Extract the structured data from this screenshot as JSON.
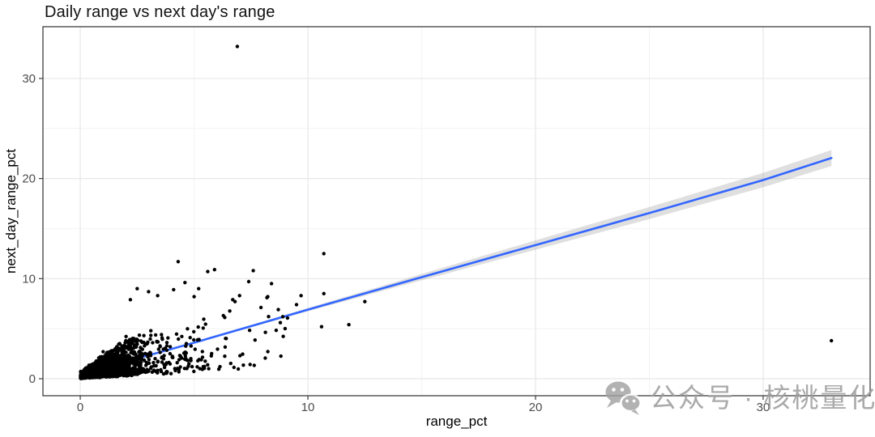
{
  "title": "Daily range vs next day's range",
  "watermark": {
    "icon": "wechat-icon",
    "text": "公众号 · 核桃量化"
  },
  "chart_data": {
    "type": "scatter",
    "title": "Daily range vs next day's range",
    "xlabel": "range_pct",
    "ylabel": "next_day_range_pct",
    "xlim": [
      -1.64,
      34.7
    ],
    "ylim": [
      -1.7,
      35.17
    ],
    "x_ticks": [
      0,
      10,
      20,
      30
    ],
    "y_ticks": [
      0,
      10,
      20,
      30
    ],
    "x_minor_ticks": [
      5,
      15,
      25
    ],
    "y_minor_ticks": [
      5,
      15,
      25
    ],
    "grid": "major and minor gridlines on, white panel with dark border, ticks outside bottom/left",
    "legend": "none",
    "point_color": "#000000",
    "point_radius_px": 2.2,
    "colors": {
      "major_grid": "#e7e7e7",
      "minor_grid": "#f3f3f3",
      "panel_border": "#3f3f3f",
      "tick_label": "#4d4d4d",
      "trend": "#3366FF",
      "ribbon": "#9a9a9a"
    },
    "trend_line": {
      "method": "smooth",
      "color": "#3366FF",
      "points": [
        [
          0,
          0.45
        ],
        [
          5,
          3.6
        ],
        [
          10,
          6.9
        ],
        [
          15,
          10.15
        ],
        [
          20,
          13.35
        ],
        [
          25,
          16.55
        ],
        [
          30,
          19.85
        ],
        [
          33,
          22.05
        ]
      ]
    },
    "ribbon": {
      "color": "#9a9a9a",
      "opacity": 0.32,
      "halfwidth": [
        [
          0,
          0.1
        ],
        [
          5,
          0.07
        ],
        [
          10,
          0.16
        ],
        [
          15,
          0.32
        ],
        [
          20,
          0.47
        ],
        [
          25,
          0.6
        ],
        [
          30,
          0.72
        ],
        [
          33,
          0.8
        ]
      ]
    },
    "outlier_points": [
      [
        6.9,
        33.2
      ],
      [
        10.7,
        12.5
      ],
      [
        33.0,
        3.8
      ],
      [
        4.3,
        11.7
      ],
      [
        5.6,
        10.7
      ],
      [
        5.9,
        10.9
      ],
      [
        7.6,
        10.8
      ],
      [
        7.4,
        9.7
      ],
      [
        8.4,
        9.5
      ],
      [
        2.5,
        9.0
      ],
      [
        3.0,
        8.7
      ],
      [
        4.1,
        8.9
      ],
      [
        4.6,
        9.6
      ],
      [
        5.2,
        9.0
      ],
      [
        3.4,
        8.3
      ],
      [
        9.7,
        8.3
      ],
      [
        10.7,
        8.5
      ],
      [
        12.5,
        7.7
      ],
      [
        9.5,
        7.4
      ],
      [
        10.6,
        5.2
      ],
      [
        11.8,
        5.4
      ],
      [
        6.7,
        7.9
      ],
      [
        6.8,
        7.7
      ],
      [
        7.0,
        8.3
      ],
      [
        8.2,
        8.1
      ],
      [
        8.7,
        6.9
      ],
      [
        8.9,
        6.2
      ],
      [
        9.0,
        5.0
      ],
      [
        2.2,
        7.9
      ],
      [
        5.0,
        8.2
      ]
    ],
    "dense_cluster": {
      "description": "Solid black fan of ~1750 points from origin: x mostly 0-4 (sparser to ~9.3), y from ~0 up to a rising envelope (~2x near 0, topping near 5-7 for x 3-6), floor hugging y=0",
      "n": 1750,
      "seed": 11,
      "x_range": [
        0,
        9.3
      ],
      "y_cap": 8.2
    }
  }
}
